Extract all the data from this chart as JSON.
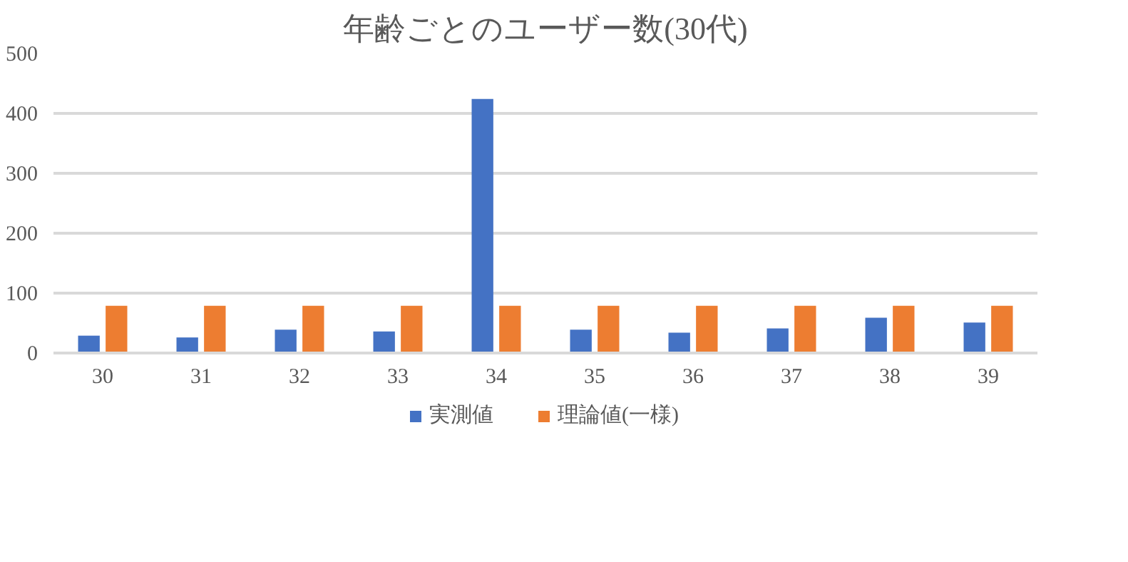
{
  "chart_data": {
    "type": "bar",
    "title": "年齢ごとのユーザー数(30代)",
    "categories": [
      "30",
      "31",
      "32",
      "33",
      "34",
      "35",
      "36",
      "37",
      "38",
      "39"
    ],
    "series": [
      {
        "name": "実測値",
        "color": "#4472c4",
        "values": [
          29,
          26,
          39,
          36,
          424,
          39,
          34,
          41,
          59,
          51
        ]
      },
      {
        "name": "理論値(一様)",
        "color": "#ed7d31",
        "values": [
          79,
          79,
          79,
          79,
          79,
          79,
          79,
          79,
          79,
          79
        ]
      }
    ],
    "ylim": [
      0,
      500
    ],
    "yticks": [
      0,
      100,
      200,
      300,
      400,
      500
    ],
    "grid": "y",
    "legend": "bottom"
  }
}
